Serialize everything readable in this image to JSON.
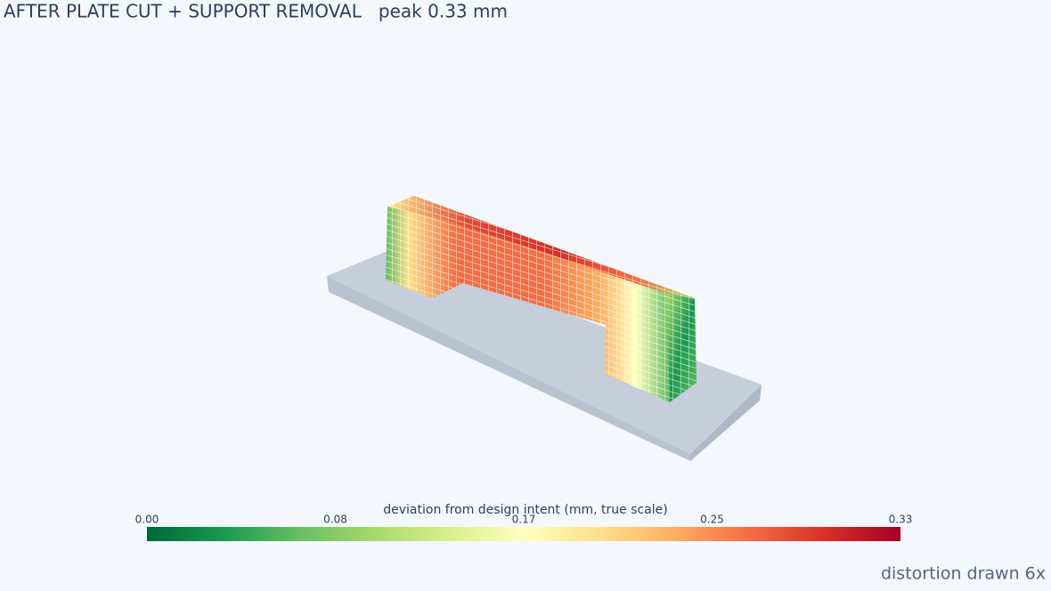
{
  "chart_data": {
    "type": "mesh3d",
    "title": "AFTER PLATE CUT + SUPPORT REMOVAL   peak 0.33 mm",
    "colorbar_title": "deviation from design intent  (mm, true scale)",
    "clim": [
      0,
      0.33
    ],
    "cticks": [
      {
        "value": 0,
        "label": "0.00"
      },
      {
        "value": 0.0825,
        "label": "0.08"
      },
      {
        "value": 0.165,
        "label": "0.17"
      },
      {
        "value": 0.2475,
        "label": "0.25"
      },
      {
        "value": 0.33,
        "label": "0.33"
      }
    ],
    "colorscale": [
      "#006837",
      "#1a9850",
      "#66bd63",
      "#a6d96a",
      "#d9ef8b",
      "#ffffbf",
      "#fee08b",
      "#fdae61",
      "#f46d43",
      "#d73027",
      "#a50026"
    ],
    "annotation": "distortion drawn 6x"
  }
}
